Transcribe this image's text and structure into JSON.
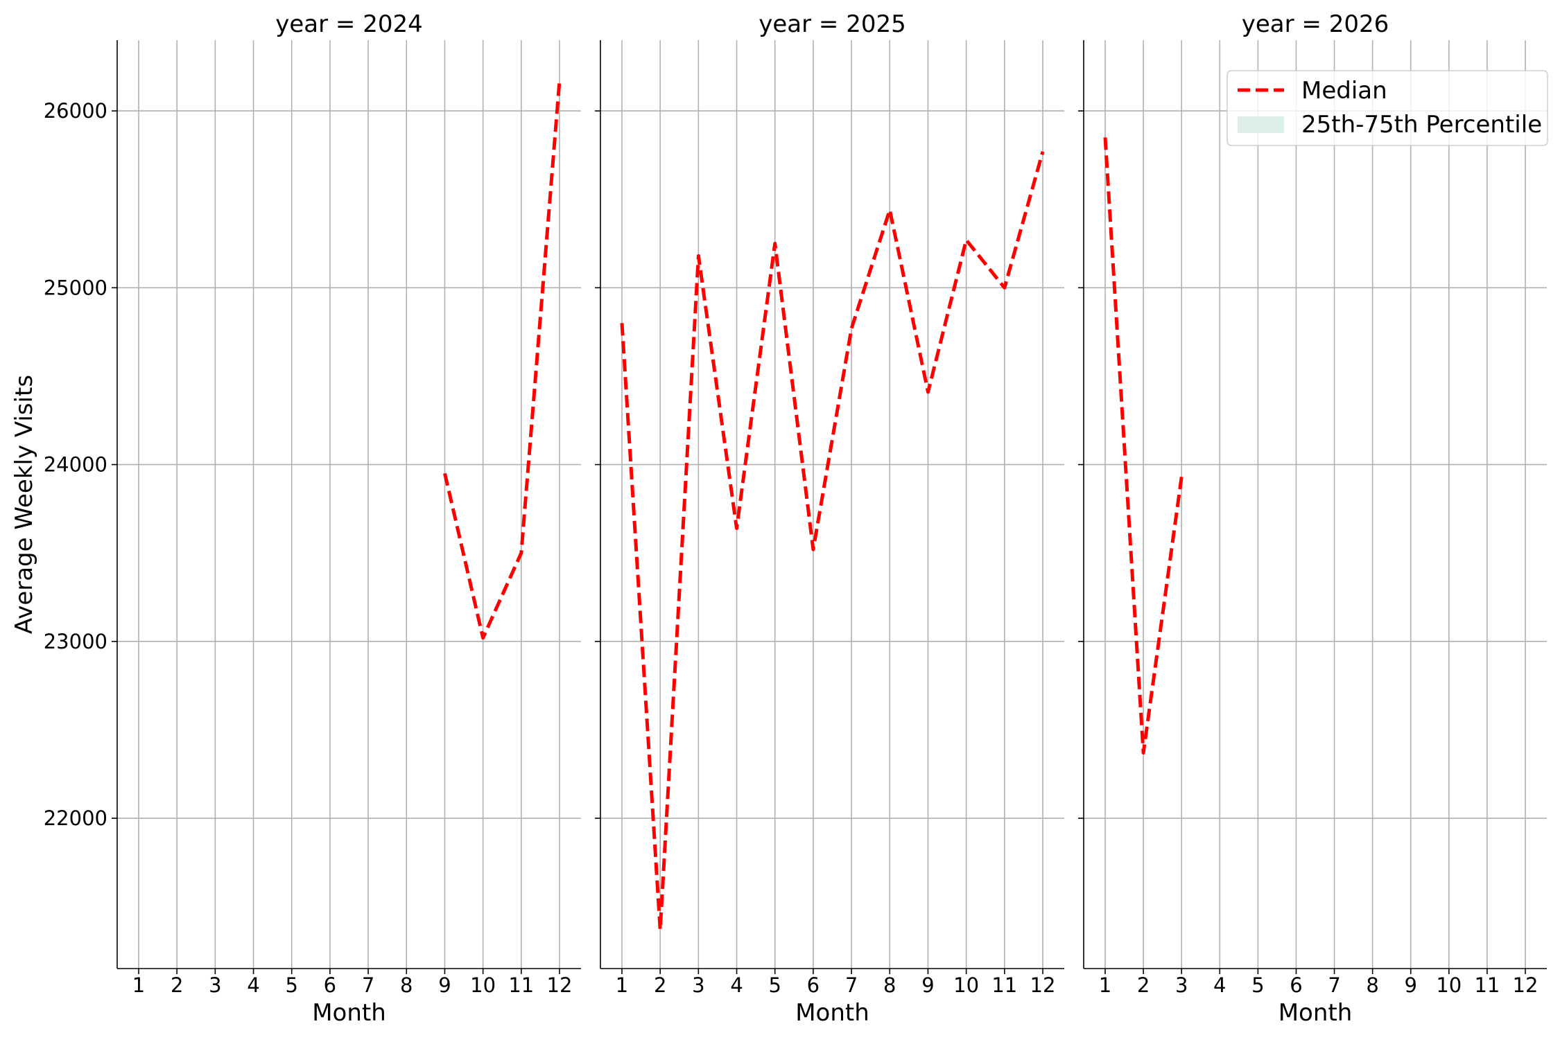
{
  "chart_data": {
    "type": "line",
    "ylabel": "Average Weekly Visits",
    "xlabel": "Month",
    "ylim": [
      21150,
      26400
    ],
    "yticks": [
      22000,
      23000,
      24000,
      25000,
      26000
    ],
    "xticks": [
      1,
      2,
      3,
      4,
      5,
      6,
      7,
      8,
      9,
      10,
      11,
      12
    ],
    "grid": true,
    "legend_placement": "upper-right of last facet",
    "legend": {
      "median_label": "Median",
      "band_label": "25th-75th Percentile",
      "median_color": "#ff0000",
      "band_color": "#dcefe8"
    },
    "facets": [
      {
        "title": "year = 2024",
        "series": [
          {
            "name": "Median",
            "x": [
              9,
              10,
              11,
              12
            ],
            "y": [
              23950,
              23020,
              23500,
              26170
            ]
          }
        ]
      },
      {
        "title": "year = 2025",
        "series": [
          {
            "name": "Median",
            "x": [
              1,
              2,
              3,
              4,
              5,
              6,
              7,
              8,
              9,
              10,
              11,
              12
            ],
            "y": [
              24800,
              21370,
              25180,
              23640,
              25250,
              23520,
              24770,
              25440,
              24410,
              25270,
              25000,
              25770
            ]
          }
        ]
      },
      {
        "title": "year = 2026",
        "series": [
          {
            "name": "Median",
            "x": [
              1,
              2,
              3
            ],
            "y": [
              25850,
              22370,
              23930
            ]
          }
        ]
      }
    ]
  }
}
